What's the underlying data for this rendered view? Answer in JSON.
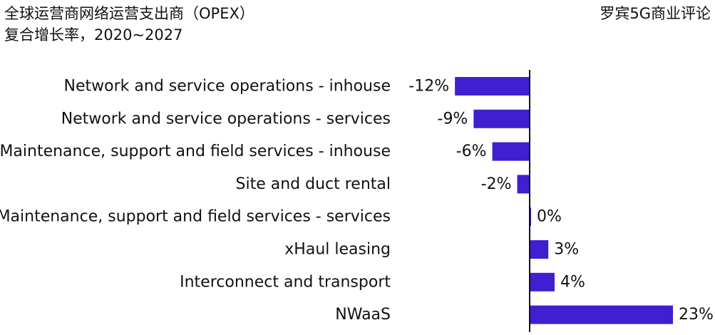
{
  "header": {
    "title_line1": "全球运营商网络运营支出商（OPEX）",
    "title_line2": "复合增长率，2020~2027",
    "source": "罗宾5G商业评论"
  },
  "chart_data": {
    "type": "bar",
    "orientation": "horizontal",
    "title": "全球运营商网络运营支出商（OPEX） 复合增长率，2020~2027",
    "categories": [
      "Network and service operations - inhouse",
      "Network and service operations  - services",
      "Maintenance, support and field services - inhouse",
      "Site and duct rental",
      "Maintenance, support and field services - services",
      "xHaul leasing",
      "Interconnect and transport",
      "NWaaS"
    ],
    "values": [
      -12,
      -9,
      -6,
      -2,
      0,
      3,
      4,
      23
    ],
    "value_labels": [
      "-12%",
      "-9%",
      "-6%",
      "-2%",
      "0%",
      "3%",
      "4%",
      "23%"
    ],
    "unit": "%",
    "xlim": [
      -12,
      23
    ],
    "bar_color": "#3f1fcf",
    "axis_color": "#111111",
    "grid": false,
    "legend": "none"
  }
}
